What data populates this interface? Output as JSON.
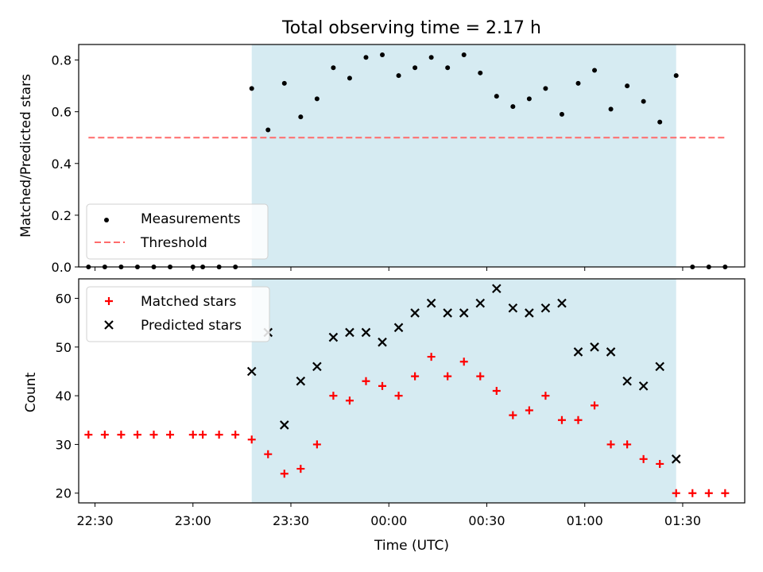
{
  "chart_data": [
    {
      "type": "scatter",
      "title": "Total observing time = 2.17 h",
      "ylabel": "Matched/Predicted stars",
      "xlabel": "",
      "xlim": [
        "22:25",
        "01:49"
      ],
      "ylim": [
        0,
        0.86
      ],
      "yticks": [
        "0.0",
        "0.2",
        "0.4",
        "0.6",
        "0.8"
      ],
      "highlight_span": [
        "23:18",
        "01:28"
      ],
      "highlight_color": "#add8e6",
      "legend": [
        "Measurements",
        "Threshold"
      ],
      "legend_position": "lower left",
      "series": [
        {
          "name": "Measurements",
          "marker": "dot",
          "color": "#000000",
          "x": [
            "22:28",
            "22:33",
            "22:38",
            "22:43",
            "22:48",
            "22:53",
            "23:00",
            "23:03",
            "23:08",
            "23:13",
            "23:18",
            "23:23",
            "23:28",
            "23:33",
            "23:38",
            "23:43",
            "23:48",
            "23:53",
            "23:58",
            "00:03",
            "00:08",
            "00:13",
            "00:18",
            "00:23",
            "00:28",
            "00:33",
            "00:38",
            "00:43",
            "00:48",
            "00:53",
            "00:58",
            "01:03",
            "01:08",
            "01:13",
            "01:18",
            "01:23",
            "01:28",
            "01:33",
            "01:38",
            "01:43"
          ],
          "y": [
            0,
            0,
            0,
            0,
            0,
            0,
            0,
            0,
            0,
            0,
            0.69,
            0.53,
            0.71,
            0.58,
            0.65,
            0.77,
            0.73,
            0.81,
            0.82,
            0.74,
            0.77,
            0.81,
            0.77,
            0.82,
            0.75,
            0.66,
            0.62,
            0.65,
            0.69,
            0.59,
            0.71,
            0.76,
            0.61,
            0.7,
            0.64,
            0.56,
            0.74,
            0,
            0,
            0
          ]
        },
        {
          "name": "Threshold",
          "style": "dashed",
          "color": "#ff6b6b",
          "x": [
            "22:28",
            "01:43"
          ],
          "y": [
            0.5,
            0.5
          ]
        }
      ]
    },
    {
      "type": "scatter",
      "title": "",
      "ylabel": "Count",
      "xlabel": "Time (UTC)",
      "xlim": [
        "22:25",
        "01:49"
      ],
      "ylim": [
        18,
        64
      ],
      "yticks": [
        "20",
        "30",
        "40",
        "50",
        "60"
      ],
      "xticks": [
        "22:30",
        "23:00",
        "23:30",
        "00:00",
        "00:30",
        "01:00",
        "01:30"
      ],
      "highlight_span": [
        "23:18",
        "01:28"
      ],
      "highlight_color": "#add8e6",
      "legend": [
        "Matched stars",
        "Predicted stars"
      ],
      "legend_position": "upper left",
      "series": [
        {
          "name": "Matched stars",
          "marker": "plus",
          "color": "#ff0000",
          "x": [
            "22:28",
            "22:33",
            "22:38",
            "22:43",
            "22:48",
            "22:53",
            "23:00",
            "23:03",
            "23:08",
            "23:13",
            "23:18",
            "23:23",
            "23:28",
            "23:33",
            "23:38",
            "23:43",
            "23:48",
            "23:53",
            "23:58",
            "00:03",
            "00:08",
            "00:13",
            "00:18",
            "00:23",
            "00:28",
            "00:33",
            "00:38",
            "00:43",
            "00:48",
            "00:53",
            "00:58",
            "01:03",
            "01:08",
            "01:13",
            "01:18",
            "01:23",
            "01:28",
            "01:33",
            "01:38",
            "01:43"
          ],
          "y": [
            32,
            32,
            32,
            32,
            32,
            32,
            32,
            32,
            32,
            32,
            31,
            28,
            24,
            25,
            30,
            40,
            39,
            43,
            42,
            40,
            44,
            48,
            44,
            47,
            44,
            41,
            36,
            37,
            40,
            35,
            35,
            38,
            30,
            30,
            27,
            26,
            20,
            20,
            20,
            20
          ]
        },
        {
          "name": "Predicted stars",
          "marker": "x",
          "color": "#000000",
          "x": [
            "23:18",
            "23:23",
            "23:28",
            "23:33",
            "23:38",
            "23:43",
            "23:48",
            "23:53",
            "23:58",
            "00:03",
            "00:08",
            "00:13",
            "00:18",
            "00:23",
            "00:28",
            "00:33",
            "00:38",
            "00:43",
            "00:48",
            "00:53",
            "00:58",
            "01:03",
            "01:08",
            "01:13",
            "01:18",
            "01:23",
            "01:28"
          ],
          "y": [
            45,
            53,
            34,
            43,
            46,
            52,
            53,
            53,
            51,
            54,
            57,
            59,
            57,
            57,
            59,
            62,
            58,
            57,
            58,
            59,
            49,
            50,
            49,
            43,
            42,
            46,
            27
          ]
        }
      ]
    }
  ]
}
